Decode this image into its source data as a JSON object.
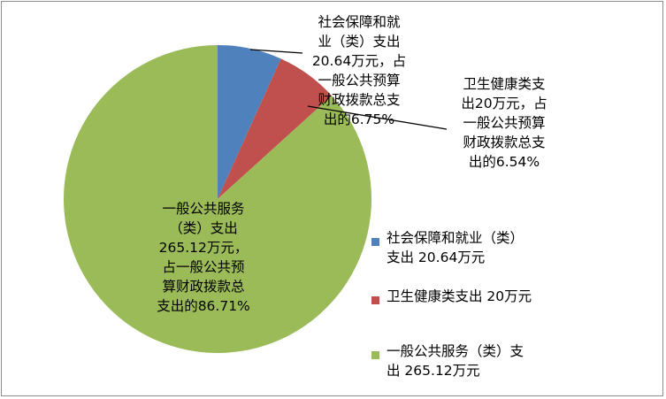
{
  "chart_data": {
    "type": "pie",
    "title": "",
    "categories": [
      "社会保障和就业（类）支出20.64万元",
      "卫生健康类支出20万元",
      "一般公共服务（类）支出265.12万元"
    ],
    "values": [
      20.64,
      20,
      265.12
    ],
    "percentages": [
      6.75,
      6.54,
      86.71
    ],
    "colors": [
      "#4f81bd",
      "#c0504d",
      "#9bbb59"
    ],
    "start_angle": "12 o'clock, clockwise",
    "legend_position": "right-bottom",
    "data_labels": [
      "社会保障和就业\n（类）支出\n20.64万元，占\n一般公共预算\n财政拨款总支\n出的6.75%",
      "卫生健康类支\n出20万元，占\n一般公共预算\n财政拨款总支\n出的6.54%",
      "一般公共服务\n（类）支出\n265.12万元，\n占一般公共预\n算财政拨款总\n支出的86.71%"
    ]
  },
  "labels": {
    "social": "社会保障和就\n业（类）支出\n20.64万元，占\n一般公共预算\n财政拨款总支\n出的6.75%",
    "health": "卫生健康类支\n出20万元，占\n一般公共预算\n财政拨款总支\n出的6.54%",
    "general": "一般公共服务\n（类）支出\n265.12万元，\n占一般公共预\n算财政拨款总\n支出的86.71%"
  },
  "legend": {
    "items": [
      {
        "label": "社会保障和就业（类）\n支出 20.64万元",
        "color": "#4f81bd"
      },
      {
        "label": "卫生健康类支出 20万元",
        "color": "#c0504d"
      },
      {
        "label": "一般公共服务（类）支\n出 265.12万元",
        "color": "#9bbb59"
      }
    ]
  }
}
